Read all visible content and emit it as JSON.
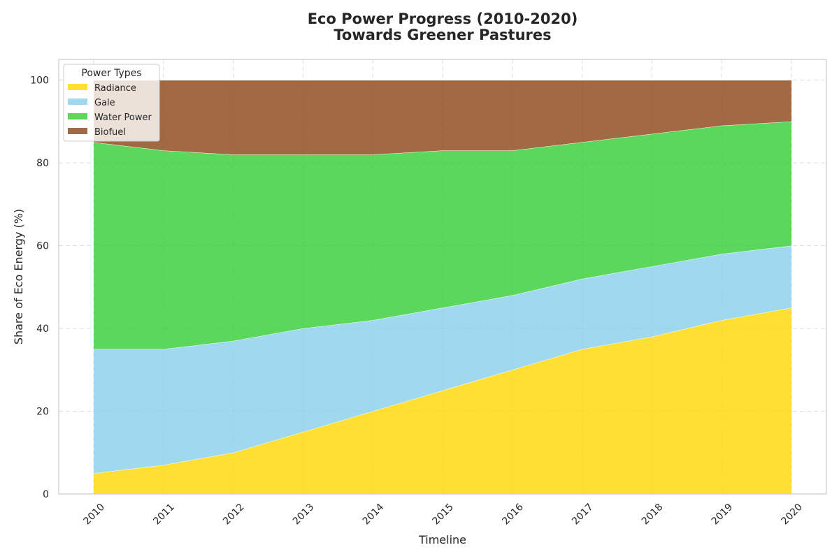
{
  "chart_data": {
    "type": "area",
    "stacked": true,
    "title": "Eco Power Progress (2010-2020)",
    "subtitle": "Towards Greener Pastures",
    "xlabel": "Timeline",
    "ylabel": "Share of Eco Energy (%)",
    "ylim": [
      0,
      105
    ],
    "yticks": [
      0,
      20,
      40,
      60,
      80,
      100
    ],
    "grid": true,
    "legend_title": "Power Types",
    "legend_position": "top-left",
    "categories": [
      "2010",
      "2011",
      "2012",
      "2013",
      "2014",
      "2015",
      "2016",
      "2017",
      "2018",
      "2019",
      "2020"
    ],
    "series": [
      {
        "name": "Radiance",
        "color": "#FFD700",
        "values": [
          5,
          7,
          10,
          15,
          20,
          25,
          30,
          35,
          38,
          42,
          45
        ]
      },
      {
        "name": "Gale",
        "color": "#87CEEB",
        "values": [
          30,
          28,
          27,
          25,
          22,
          20,
          18,
          17,
          17,
          16,
          15
        ]
      },
      {
        "name": "Water Power",
        "color": "#32CD32",
        "values": [
          50,
          48,
          45,
          42,
          40,
          38,
          35,
          33,
          32,
          31,
          30
        ]
      },
      {
        "name": "Biofuel",
        "color": "#8B4513",
        "values": [
          15,
          17,
          18,
          18,
          18,
          17,
          17,
          15,
          13,
          11,
          10
        ]
      }
    ]
  }
}
